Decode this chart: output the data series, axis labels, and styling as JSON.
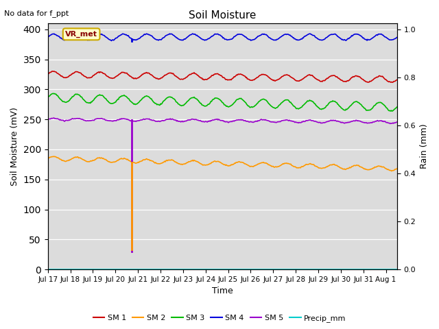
{
  "title": "Soil Moisture",
  "top_left_text": "No data for f_ppt",
  "xlabel": "Time",
  "ylabel_left": "Soil Moisture (mV)",
  "ylabel_right": "Rain (mm)",
  "ylim_left": [
    0,
    410
  ],
  "ylim_right": [
    0.0,
    1.025
  ],
  "yticks_left": [
    0,
    50,
    100,
    150,
    200,
    250,
    300,
    350,
    400
  ],
  "yticks_right": [
    0.0,
    0.2,
    0.4,
    0.6,
    0.8,
    1.0
  ],
  "total_days": 15.5,
  "n_points": 500,
  "xtick_positions": [
    0,
    1,
    2,
    3,
    4,
    5,
    6,
    7,
    8,
    9,
    10,
    11,
    12,
    13,
    14,
    15
  ],
  "xtick_labels": [
    "Jul 17",
    "Jul 18",
    "Jul 19",
    "Jul 20",
    "Jul 21",
    "Jul 22",
    "Jul 23",
    "Jul 24",
    "Jul 25",
    "Jul 26",
    "Jul 27",
    "Jul 28",
    "Jul 29",
    "Jul 30",
    "Jul 31",
    "Aug 1"
  ],
  "sm1_color": "#cc0000",
  "sm2_color": "#ff9900",
  "sm3_color": "#00bb00",
  "sm4_color": "#0000dd",
  "sm5_color": "#9900cc",
  "precip_color": "#00cccc",
  "sm1_base": 325,
  "sm1_amp": 5,
  "sm1_trend": -0.55,
  "sm2_base": 185,
  "sm2_amp": 3.5,
  "sm2_trend": -1.1,
  "sm3_base": 286,
  "sm3_amp": 7,
  "sm3_trend": -1.0,
  "sm4_base": 387,
  "sm4_amp": 5,
  "sm4_trend": 0.0,
  "sm5_base": 250,
  "sm5_amp": 2,
  "sm5_trend": -0.3,
  "wave_freq": 15,
  "vr_x_day": 3.72,
  "background_color": "#dcdcdc",
  "annotation_box_color": "#ffffcc",
  "annotation_box_edge": "#ccaa00",
  "annotation_text": "VR_met",
  "annotation_text_color": "#880000",
  "legend_labels": [
    "SM 1",
    "SM 2",
    "SM 3",
    "SM 4",
    "SM 5",
    "Precip_mm"
  ]
}
